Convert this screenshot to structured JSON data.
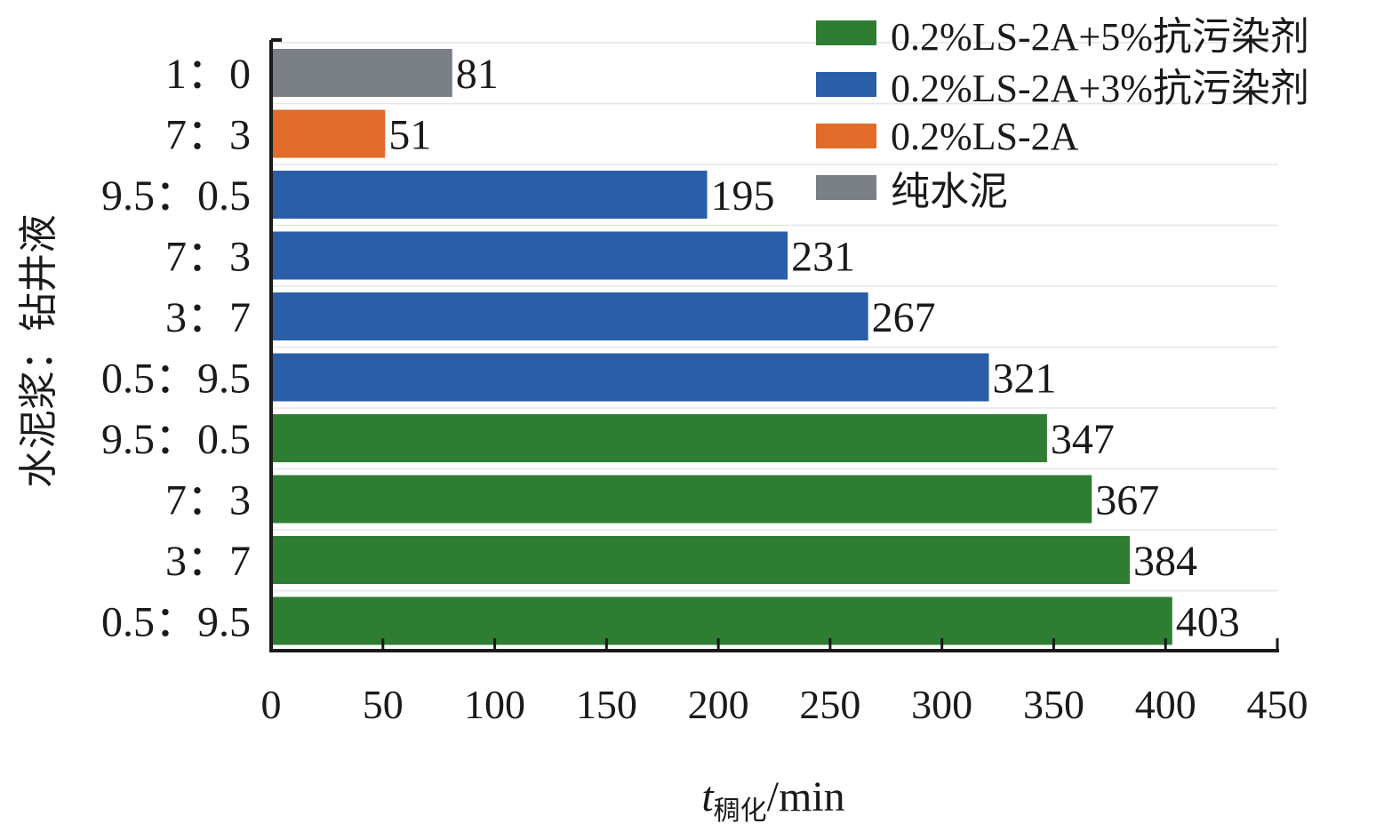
{
  "chart_data": {
    "type": "bar",
    "orientation": "horizontal",
    "categories": [
      "1：0",
      "7：3",
      "9.5：0.5",
      "7：3",
      "3：7",
      "0.5：9.5",
      "9.5：0.5",
      "7：3",
      "3：7",
      "0.5：9.5"
    ],
    "values": [
      81,
      51,
      195,
      231,
      267,
      321,
      347,
      367,
      384,
      403
    ],
    "bar_series": [
      "纯水泥",
      "0.2%LS-2A",
      "0.2%LS-2A+3%抗污染剂",
      "0.2%LS-2A+3%抗污染剂",
      "0.2%LS-2A+3%抗污染剂",
      "0.2%LS-2A+3%抗污染剂",
      "0.2%LS-2A+5%抗污染剂",
      "0.2%LS-2A+5%抗污染剂",
      "0.2%LS-2A+5%抗污染剂",
      "0.2%LS-2A+5%抗污染剂"
    ],
    "series": [
      {
        "name": "0.2%LS-2A+5%抗污染剂",
        "color": "#2e7d32"
      },
      {
        "name": "0.2%LS-2A+3%抗污染剂",
        "color": "#2b5ea8"
      },
      {
        "name": "0.2%LS-2A",
        "color": "#e06b2a"
      },
      {
        "name": "纯水泥",
        "color": "#7b7f86"
      }
    ],
    "xlabel_main": "t",
    "xlabel_sub": "稠化",
    "xlabel_unit": "/min",
    "ylabel": "水泥浆：钻井液",
    "xlim": [
      0,
      450
    ],
    "xticks": [
      0,
      50,
      100,
      150,
      200,
      250,
      300,
      350,
      400,
      450
    ],
    "legend_position": "top-right",
    "grid": true
  }
}
